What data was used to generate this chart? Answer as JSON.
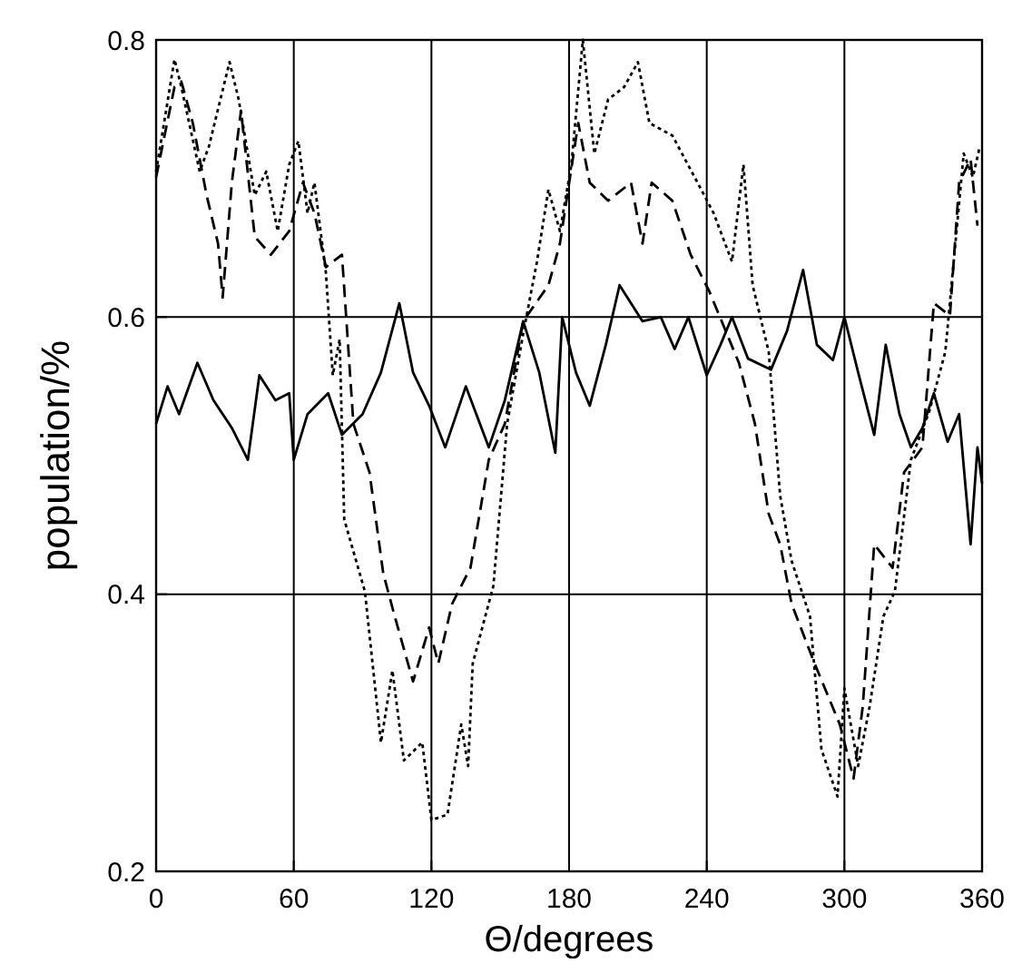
{
  "chart_data": {
    "type": "line",
    "xlabel": "Θ/degrees",
    "ylabel": "population/%",
    "xlim": [
      0,
      360
    ],
    "ylim": [
      0.2,
      0.8
    ],
    "xticks": [
      0,
      60,
      120,
      180,
      240,
      300,
      360
    ],
    "yticks": [
      0.2,
      0.4,
      0.6,
      0.8
    ],
    "grid": true,
    "marker": "none",
    "series": [
      {
        "color": "#000000",
        "line_style": "solid",
        "x": [
          0,
          5,
          10,
          18,
          25,
          33,
          40,
          45,
          52,
          58,
          60,
          66,
          75,
          81,
          90,
          98,
          106,
          112,
          119,
          126,
          135,
          145,
          152,
          160,
          167,
          174,
          177,
          183,
          189,
          196,
          202,
          212,
          220,
          226,
          232,
          240,
          246,
          251,
          258,
          268,
          275,
          282,
          288,
          295,
          300,
          306,
          313,
          318,
          324,
          329,
          334,
          339,
          345,
          350,
          355,
          358,
          360
        ],
        "values": [
          0.523,
          0.55,
          0.53,
          0.567,
          0.54,
          0.52,
          0.497,
          0.558,
          0.54,
          0.545,
          0.497,
          0.53,
          0.545,
          0.515,
          0.53,
          0.56,
          0.61,
          0.56,
          0.536,
          0.506,
          0.55,
          0.506,
          0.54,
          0.597,
          0.56,
          0.502,
          0.6,
          0.56,
          0.536,
          0.58,
          0.623,
          0.597,
          0.6,
          0.577,
          0.6,
          0.558,
          0.58,
          0.6,
          0.57,
          0.562,
          0.59,
          0.634,
          0.58,
          0.569,
          0.6,
          0.56,
          0.515,
          0.58,
          0.53,
          0.506,
          0.52,
          0.545,
          0.51,
          0.53,
          0.436,
          0.506,
          0.48
        ]
      },
      {
        "color": "#000000",
        "line_style": "dashed",
        "x": [
          0,
          8,
          11,
          16,
          22,
          27,
          29,
          33,
          37,
          43,
          50,
          58,
          64,
          69,
          74,
          81,
          86,
          93,
          99,
          104,
          112,
          119,
          123,
          129,
          137,
          145,
          152,
          160,
          171,
          176,
          184,
          189,
          197,
          207,
          212,
          216,
          225,
          233,
          241,
          254,
          261,
          267,
          272,
          277,
          287,
          298,
          304,
          308,
          313,
          321,
          326,
          334,
          339,
          346,
          350,
          355,
          358
        ],
        "values": [
          0.701,
          0.766,
          0.77,
          0.74,
          0.688,
          0.653,
          0.614,
          0.697,
          0.749,
          0.658,
          0.645,
          0.662,
          0.697,
          0.675,
          0.636,
          0.645,
          0.523,
          0.488,
          0.415,
          0.384,
          0.337,
          0.376,
          0.35,
          0.393,
          0.419,
          0.497,
          0.523,
          0.597,
          0.623,
          0.653,
          0.74,
          0.697,
          0.684,
          0.697,
          0.653,
          0.697,
          0.684,
          0.645,
          0.619,
          0.567,
          0.523,
          0.458,
          0.436,
          0.393,
          0.35,
          0.306,
          0.267,
          0.319,
          0.436,
          0.419,
          0.488,
          0.506,
          0.61,
          0.601,
          0.697,
          0.714,
          0.666
        ]
      },
      {
        "color": "#000000",
        "line_style": "dotted",
        "x": [
          0,
          8,
          11,
          19,
          23,
          32,
          36,
          43,
          48,
          53,
          58,
          62,
          66,
          69,
          74,
          77,
          80,
          82,
          91,
          98,
          103,
          108,
          116,
          120,
          127,
          133,
          136,
          138,
          147,
          153,
          160,
          166,
          171,
          176,
          181,
          186,
          191,
          197,
          204,
          210,
          215,
          225,
          236,
          243,
          251,
          256,
          260,
          267,
          272,
          277,
          285,
          290,
          297,
          300,
          306,
          311,
          317,
          322,
          329,
          337,
          344,
          352,
          356,
          359
        ],
        "values": [
          0.705,
          0.786,
          0.766,
          0.705,
          0.723,
          0.784,
          0.757,
          0.688,
          0.705,
          0.662,
          0.71,
          0.727,
          0.675,
          0.697,
          0.632,
          0.558,
          0.584,
          0.454,
          0.402,
          0.293,
          0.345,
          0.28,
          0.293,
          0.237,
          0.241,
          0.306,
          0.276,
          0.35,
          0.406,
          0.523,
          0.588,
          0.64,
          0.692,
          0.662,
          0.71,
          0.8,
          0.718,
          0.757,
          0.766,
          0.784,
          0.74,
          0.731,
          0.697,
          0.675,
          0.64,
          0.71,
          0.623,
          0.575,
          0.471,
          0.424,
          0.384,
          0.288,
          0.254,
          0.332,
          0.276,
          0.319,
          0.384,
          0.402,
          0.497,
          0.532,
          0.575,
          0.718,
          0.701,
          0.723
        ]
      }
    ]
  }
}
